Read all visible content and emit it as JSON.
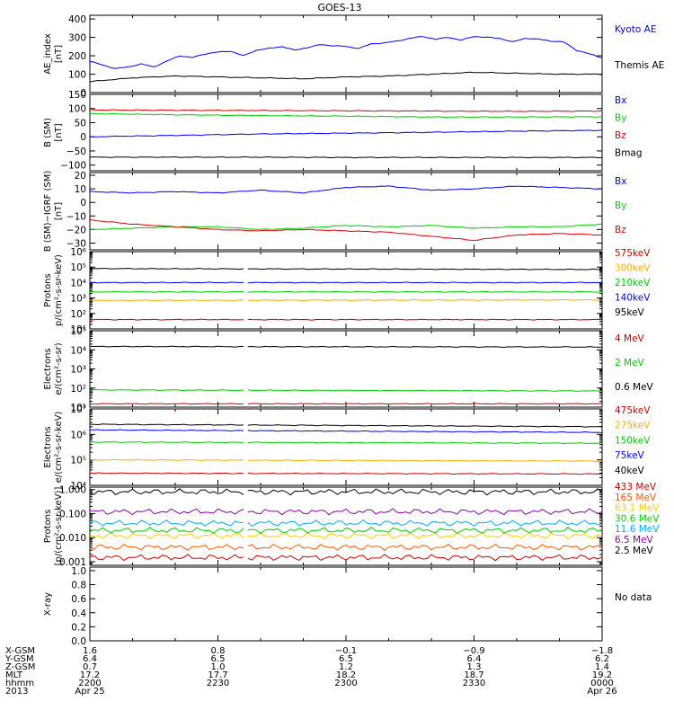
{
  "title": "GOES-13",
  "panels": [
    {
      "id": "ae",
      "ylabel": [
        "AE_index",
        "[nT]"
      ],
      "log": false,
      "ylim": [
        0,
        420
      ],
      "ticks": [
        {
          "v": 0,
          "l": "0"
        },
        {
          "v": 100,
          "l": "100"
        },
        {
          "v": 200,
          "l": "200"
        },
        {
          "v": 300,
          "l": "300"
        },
        {
          "v": 400,
          "l": "400"
        }
      ],
      "legend": [
        {
          "label": "Kyoto AE",
          "color": "#0000ff"
        },
        {
          "label": "Themis AE",
          "color": "#000000"
        }
      ]
    },
    {
      "id": "bsm",
      "ylabel": [
        "B (SM)",
        "[nT]"
      ],
      "log": false,
      "ylim": [
        -120,
        150
      ],
      "ticks": [
        {
          "v": -100,
          "l": "−100"
        },
        {
          "v": -50,
          "l": "−50"
        },
        {
          "v": 0,
          "l": "0"
        },
        {
          "v": 50,
          "l": "50"
        },
        {
          "v": 100,
          "l": "100"
        },
        {
          "v": 150,
          "l": "150"
        }
      ],
      "legend": [
        {
          "label": "Bx",
          "color": "#0000ff"
        },
        {
          "label": "By",
          "color": "#00cc00"
        },
        {
          "label": "Bz",
          "color": "#dd0000"
        },
        {
          "label": "Bmag",
          "color": "#000000"
        }
      ]
    },
    {
      "id": "bigrf",
      "ylabel": [
        "B (SM)−IGRF (SM)",
        "[nT]"
      ],
      "log": false,
      "ylim": [
        -35,
        22
      ],
      "ticks": [
        {
          "v": -30,
          "l": "−30"
        },
        {
          "v": -20,
          "l": "−20"
        },
        {
          "v": -10,
          "l": "−10"
        },
        {
          "v": 0,
          "l": "0"
        },
        {
          "v": 10,
          "l": "10"
        },
        {
          "v": 20,
          "l": "20"
        }
      ],
      "legend": [
        {
          "label": "Bx",
          "color": "#0000ff"
        },
        {
          "label": "By",
          "color": "#00cc00"
        },
        {
          "label": "Bz",
          "color": "#dd0000"
        }
      ]
    },
    {
      "id": "protons_kev",
      "ylabel": [
        "Protons",
        "p/(cm²-s-sr-keV)"
      ],
      "log": true,
      "ylim": [
        1,
        6
      ],
      "ticks": [
        {
          "v": 1,
          "l": "10¹"
        },
        {
          "v": 2,
          "l": "10²"
        },
        {
          "v": 3,
          "l": "10³"
        },
        {
          "v": 4,
          "l": "10⁴"
        },
        {
          "v": 5,
          "l": "10⁵"
        },
        {
          "v": 6,
          "l": "10⁶"
        }
      ],
      "legend": [
        {
          "label": "575keV",
          "color": "#cc0000"
        },
        {
          "label": "300keV",
          "color": "#ffaa00"
        },
        {
          "label": "210keV",
          "color": "#00cc00"
        },
        {
          "label": "140keV",
          "color": "#0000ff"
        },
        {
          "label": "95keV",
          "color": "#000000"
        }
      ]
    },
    {
      "id": "electrons_mev",
      "ylabel": [
        "Electrons",
        "e/(cm²-s-sr)"
      ],
      "log": true,
      "ylim": [
        1,
        5
      ],
      "ticks": [
        {
          "v": 1,
          "l": "10¹"
        },
        {
          "v": 2,
          "l": "10²"
        },
        {
          "v": 3,
          "l": "10³"
        },
        {
          "v": 4,
          "l": "10⁴"
        },
        {
          "v": 5,
          "l": "10⁵"
        }
      ],
      "legend": [
        {
          "label": "4 MeV",
          "color": "#cc0000"
        },
        {
          "label": "2 MeV",
          "color": "#00cc00"
        },
        {
          "label": "0.6 MeV",
          "color": "#000000"
        }
      ]
    },
    {
      "id": "electrons_kev",
      "ylabel": [
        "Electrons",
        "e/(cm²-s-sr-keV)"
      ],
      "log": true,
      "ylim": [
        4,
        7
      ],
      "ticks": [
        {
          "v": 4,
          "l": "10⁴"
        },
        {
          "v": 5,
          "l": "10⁵"
        },
        {
          "v": 6,
          "l": "10⁶"
        },
        {
          "v": 7,
          "l": "10⁷"
        }
      ],
      "legend": [
        {
          "label": "475keV",
          "color": "#cc0000"
        },
        {
          "label": "275keV",
          "color": "#ffaa00"
        },
        {
          "label": "150keV",
          "color": "#00cc00"
        },
        {
          "label": "75keV",
          "color": "#0000ff"
        },
        {
          "label": "40keV",
          "color": "#000000"
        }
      ]
    },
    {
      "id": "protons_mev",
      "ylabel": [
        "Protons",
        "[p/(cm²-s-sr-keV)]"
      ],
      "log": true,
      "ylim": [
        -3.15,
        0.1
      ],
      "ticks": [
        {
          "v": -3,
          "l": "0.001"
        },
        {
          "v": -2,
          "l": "0.010"
        },
        {
          "v": -1,
          "l": "0.100"
        },
        {
          "v": 0,
          "l": "1.000"
        }
      ],
      "legend": [
        {
          "label": "433 MeV",
          "color": "#cc0000"
        },
        {
          "label": "165 MeV",
          "color": "#ff5500"
        },
        {
          "label": "63.1 MeV",
          "color": "#ffcc00"
        },
        {
          "label": "30.6 MeV",
          "color": "#00cc00"
        },
        {
          "label": "11.6 MeV",
          "color": "#00aaff"
        },
        {
          "label": "6.5 MeV",
          "color": "#8800aa"
        },
        {
          "label": "2.5 MeV",
          "color": "#000000"
        }
      ]
    },
    {
      "id": "xray",
      "ylabel": [
        "X-ray",
        ""
      ],
      "log": false,
      "ylim": [
        0,
        1.05
      ],
      "ticks": [
        {
          "v": 0,
          "l": "0.0"
        },
        {
          "v": 0.2,
          "l": "0.2"
        },
        {
          "v": 0.4,
          "l": "0.4"
        },
        {
          "v": 0.6,
          "l": "0.6"
        },
        {
          "v": 0.8,
          "l": "0.8"
        },
        {
          "v": 1.0,
          "l": "1.0"
        }
      ],
      "legend": [
        {
          "label": "No data",
          "color": "#000000"
        }
      ]
    }
  ],
  "ephemeris": {
    "row_labels": [
      "X-GSM",
      "Y-GSM",
      "Z-GSM",
      "MLT",
      "hhmm",
      "2013"
    ],
    "columns": [
      [
        "1.6",
        "6.4",
        "0.7",
        "17.2",
        "2200",
        "Apr 25"
      ],
      [
        "0.8",
        "6.5",
        "1.0",
        "17.7",
        "2230",
        ""
      ],
      [
        "−0.1",
        "6.5",
        "1.2",
        "18.2",
        "2300",
        ""
      ],
      [
        "−0.9",
        "6.4",
        "1.3",
        "18.7",
        "2330",
        ""
      ],
      [
        "−1.8",
        "6.2",
        "1.4",
        "19.2",
        "0000",
        "Apr 26"
      ]
    ]
  },
  "chart_data": {
    "type": "line",
    "title": "GOES-13",
    "x_range": [
      "2013-04-25 22:00",
      "2013-04-26 00:00"
    ],
    "x_ticks": [
      "2200",
      "2230",
      "2300",
      "2330",
      "0000"
    ],
    "data_gap_minutes": [
      18,
      19
    ],
    "panels": [
      {
        "ylabel": "AE_index [nT]",
        "series": [
          {
            "name": "Kyoto AE",
            "minute": [
              0,
              3,
              6,
              9,
              12,
              15,
              18,
              21,
              24,
              27,
              30,
              33,
              36,
              39,
              42,
              45,
              48,
              51,
              54,
              57,
              60,
              63,
              66,
              69,
              72,
              75,
              78,
              81,
              84,
              87,
              90,
              93,
              96,
              99,
              102,
              105,
              108,
              111,
              114,
              117,
              120
            ],
            "values": [
              170,
              150,
              130,
              140,
              155,
              140,
              170,
              200,
              190,
              210,
              220,
              225,
              200,
              230,
              240,
              250,
              230,
              245,
              260,
              255,
              250,
              240,
              265,
              270,
              280,
              295,
              305,
              290,
              300,
              285,
              305,
              300,
              295,
              275,
              295,
              290,
              280,
              275,
              230,
              210,
              190
            ]
          },
          {
            "name": "Themis AE",
            "minute": [
              0,
              10,
              20,
              30,
              40,
              50,
              60,
              70,
              80,
              90,
              100,
              110,
              120
            ],
            "values": [
              60,
              80,
              90,
              85,
              80,
              75,
              85,
              90,
              100,
              110,
              105,
              100,
              100
            ]
          }
        ]
      },
      {
        "ylabel": "B (SM) [nT]",
        "series": [
          {
            "name": "Bx",
            "minute": [
              0,
              20,
              40,
              60,
              80,
              100,
              120
            ],
            "values": [
              0,
              5,
              10,
              13,
              16,
              20,
              23
            ]
          },
          {
            "name": "By",
            "minute": [
              0,
              20,
              40,
              60,
              80,
              100,
              120
            ],
            "values": [
              82,
              78,
              75,
              73,
              70,
              70,
              71
            ]
          },
          {
            "name": "Bz",
            "minute": [
              0,
              20,
              40,
              60,
              80,
              100,
              120
            ],
            "values": [
              95,
              94,
              93,
              92,
              91,
              90,
              91
            ]
          },
          {
            "name": "Bmag",
            "minute": [
              0,
              20,
              40,
              60,
              80,
              100,
              120
            ],
            "values": [
              -72,
              -72,
              -72,
              -73,
              -73,
              -73,
              -73
            ]
          }
        ]
      },
      {
        "ylabel": "B (SM)-IGRF (SM) [nT]",
        "series": [
          {
            "name": "Bx",
            "minute": [
              0,
              10,
              20,
              30,
              40,
              50,
              60,
              70,
              80,
              90,
              100,
              110,
              120
            ],
            "values": [
              8,
              7,
              8,
              7,
              9,
              7,
              11,
              12,
              9,
              10,
              12,
              11,
              10
            ]
          },
          {
            "name": "By",
            "minute": [
              0,
              10,
              20,
              30,
              40,
              50,
              60,
              70,
              80,
              90,
              100,
              110,
              120
            ],
            "values": [
              -20,
              -19,
              -18,
              -18,
              -20,
              -19,
              -17,
              -18,
              -17,
              -19,
              -18,
              -18,
              -16
            ]
          },
          {
            "name": "Bz",
            "minute": [
              0,
              10,
              20,
              30,
              40,
              50,
              60,
              70,
              80,
              90,
              100,
              110,
              120
            ],
            "values": [
              -13,
              -16,
              -18,
              -20,
              -21,
              -20,
              -21,
              -22,
              -25,
              -28,
              -24,
              -23,
              -24
            ]
          }
        ]
      },
      {
        "ylabel": "Protons p/(cm2-s-sr-keV)",
        "series": [
          {
            "name": "575keV",
            "minute": [
              0,
              120
            ],
            "values": [
              40,
              40
            ]
          },
          {
            "name": "300keV",
            "minute": [
              0,
              120
            ],
            "values": [
              700,
              750
            ]
          },
          {
            "name": "210keV",
            "minute": [
              0,
              120
            ],
            "values": [
              2500,
              2500
            ]
          },
          {
            "name": "140keV",
            "minute": [
              0,
              120
            ],
            "values": [
              10000,
              10000
            ]
          },
          {
            "name": "95keV",
            "minute": [
              0,
              120
            ],
            "values": [
              80000,
              70000
            ]
          }
        ]
      },
      {
        "ylabel": "Electrons e/(cm2-s-sr)",
        "series": [
          {
            "name": "4 MeV",
            "minute": [
              0,
              120
            ],
            "values": [
              15,
              15
            ]
          },
          {
            "name": "2 MeV",
            "minute": [
              0,
              120
            ],
            "values": [
              80,
              70
            ]
          },
          {
            "name": "0.6 MeV",
            "minute": [
              0,
              120
            ],
            "values": [
              15000,
              14000
            ]
          }
        ]
      },
      {
        "ylabel": "Electrons e/(cm2-s-sr-keV)",
        "series": [
          {
            "name": "475keV",
            "minute": [
              0,
              120
            ],
            "values": [
              30000,
              28000
            ]
          },
          {
            "name": "275keV",
            "minute": [
              0,
              120
            ],
            "values": [
              100000,
              90000
            ]
          },
          {
            "name": "150keV",
            "minute": [
              0,
              120
            ],
            "values": [
              500000,
              450000
            ]
          },
          {
            "name": "75keV",
            "minute": [
              0,
              120
            ],
            "values": [
              1500000,
              1200000
            ]
          },
          {
            "name": "40keV",
            "minute": [
              0,
              120
            ],
            "values": [
              2500000,
              2000000
            ]
          }
        ]
      },
      {
        "ylabel": "Protons [p/(cm2-s-sr-keV)]",
        "series": [
          {
            "name": "433 MeV",
            "minute": [
              0,
              120
            ],
            "values": [
              0.0015,
              0.0015
            ]
          },
          {
            "name": "165 MeV",
            "minute": [
              0,
              120
            ],
            "values": [
              0.004,
              0.004
            ]
          },
          {
            "name": "63.1 MeV",
            "minute": [
              0,
              120
            ],
            "values": [
              0.012,
              0.012
            ]
          },
          {
            "name": "30.6 MeV",
            "minute": [
              0,
              120
            ],
            "values": [
              0.02,
              0.02
            ]
          },
          {
            "name": "11.6 MeV",
            "minute": [
              0,
              120
            ],
            "values": [
              0.04,
              0.04
            ]
          },
          {
            "name": "6.5 MeV",
            "minute": [
              0,
              120
            ],
            "values": [
              0.12,
              0.12
            ]
          },
          {
            "name": "2.5 MeV",
            "minute": [
              0,
              120
            ],
            "values": [
              0.8,
              0.8
            ]
          }
        ]
      },
      {
        "ylabel": "X-ray",
        "series": []
      }
    ]
  }
}
